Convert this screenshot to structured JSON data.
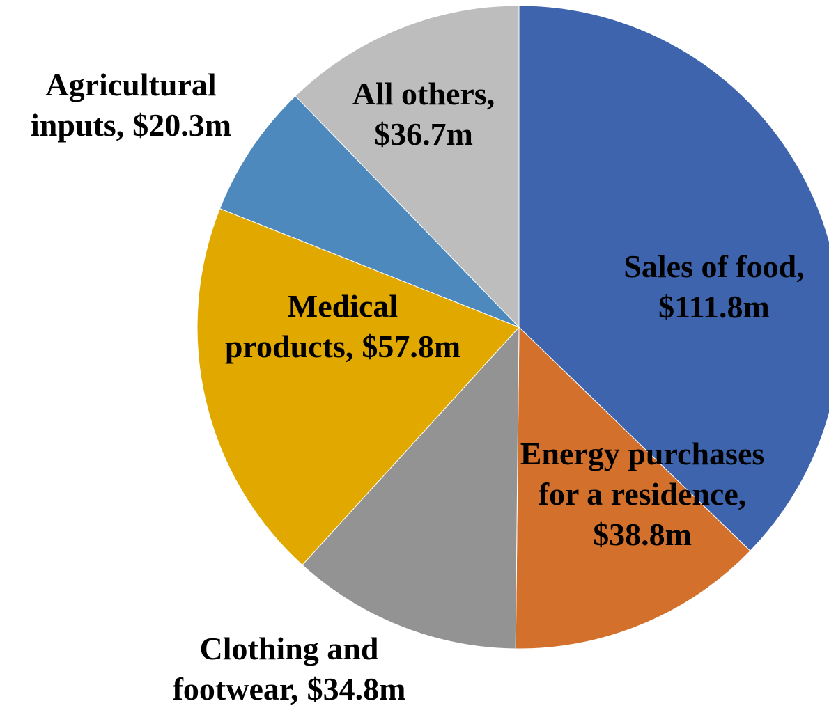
{
  "chart_data": {
    "type": "pie",
    "categories": [
      [
        "Sales of food,"
      ],
      [
        "Energy purchases",
        "for a residence,"
      ],
      [
        "Clothing and",
        "footwear,"
      ],
      [
        "Medical",
        "products,"
      ],
      [
        "Agricultural",
        "inputs,"
      ],
      [
        "All others,"
      ]
    ],
    "values": [
      111.8,
      38.8,
      34.8,
      57.8,
      20.3,
      36.7
    ],
    "value_labels": [
      "$111.8m",
      "$38.8m",
      "$34.8m",
      "$57.8m",
      "$20.3m",
      "$36.7m"
    ],
    "colors": [
      "#3d64ad",
      "#d2702c",
      "#939393",
      "#e1a800",
      "#4e89be",
      "#bdbdbd"
    ]
  }
}
